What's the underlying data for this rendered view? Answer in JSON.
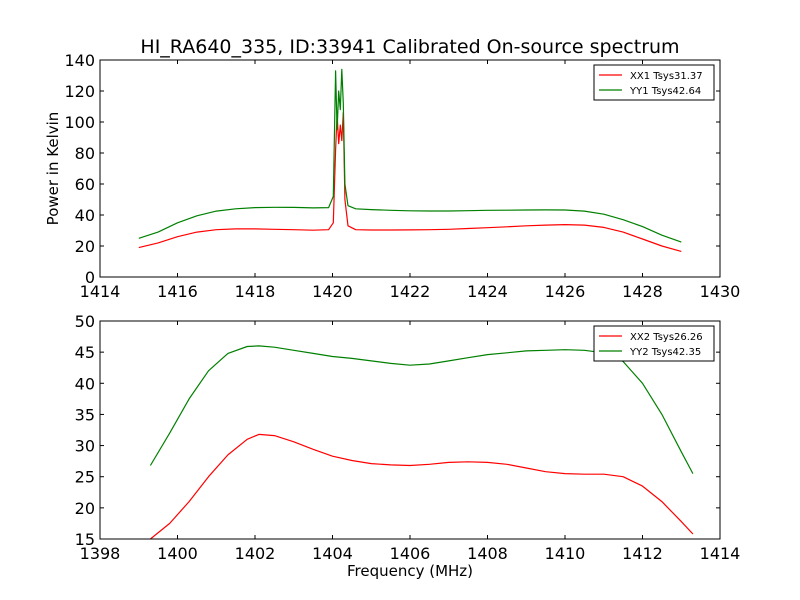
{
  "figure": {
    "title": "HI_RA640_335, ID:33941 Calibrated On-source spectrum",
    "background": "#ffffff"
  },
  "chart_data": [
    {
      "type": "line",
      "title": "HI_RA640_335, ID:33941 Calibrated On-source spectrum",
      "xlabel": "",
      "ylabel": "Power in Kelvin",
      "xlim": [
        1414,
        1430
      ],
      "ylim": [
        0,
        140
      ],
      "xticks": [
        "1414",
        "1416",
        "1418",
        "1420",
        "1422",
        "1424",
        "1426",
        "1428",
        "1430"
      ],
      "yticks": [
        "0",
        "20",
        "40",
        "60",
        "80",
        "100",
        "120",
        "140"
      ],
      "grid": false,
      "legend_position": "top-right",
      "series": [
        {
          "name": "XX1 Tsys31.37",
          "color": "#ff0000",
          "points": [
            [
              1415,
              19
            ],
            [
              1415.5,
              22
            ],
            [
              1416,
              26
            ],
            [
              1416.5,
              29
            ],
            [
              1417,
              30.5
            ],
            [
              1417.5,
              31
            ],
            [
              1418,
              31
            ],
            [
              1418.5,
              30.8
            ],
            [
              1419,
              30.5
            ],
            [
              1419.5,
              30.2
            ],
            [
              1419.9,
              30.5
            ],
            [
              1420.02,
              35
            ],
            [
              1420.08,
              82
            ],
            [
              1420.12,
              105
            ],
            [
              1420.16,
              86
            ],
            [
              1420.2,
              98
            ],
            [
              1420.24,
              88
            ],
            [
              1420.28,
              106
            ],
            [
              1420.32,
              50
            ],
            [
              1420.4,
              33
            ],
            [
              1420.6,
              30.5
            ],
            [
              1421,
              30.3
            ],
            [
              1421.5,
              30.3
            ],
            [
              1422,
              30.4
            ],
            [
              1422.5,
              30.5
            ],
            [
              1423,
              30.8
            ],
            [
              1423.5,
              31.3
            ],
            [
              1424,
              31.8
            ],
            [
              1424.5,
              32.4
            ],
            [
              1425,
              33
            ],
            [
              1425.5,
              33.5
            ],
            [
              1426,
              33.8
            ],
            [
              1426.5,
              33.5
            ],
            [
              1427,
              32
            ],
            [
              1427.5,
              29
            ],
            [
              1428,
              24.5
            ],
            [
              1428.5,
              20
            ],
            [
              1429,
              16.5
            ]
          ]
        },
        {
          "name": "YY1 Tsys42.64",
          "color": "#008000",
          "points": [
            [
              1415,
              25
            ],
            [
              1415.5,
              29
            ],
            [
              1416,
              35
            ],
            [
              1416.5,
              39.5
            ],
            [
              1417,
              42.5
            ],
            [
              1417.5,
              44
            ],
            [
              1418,
              44.8
            ],
            [
              1418.5,
              45
            ],
            [
              1419,
              44.9
            ],
            [
              1419.5,
              44.6
            ],
            [
              1419.9,
              44.8
            ],
            [
              1420.02,
              52
            ],
            [
              1420.08,
              133
            ],
            [
              1420.12,
              95
            ],
            [
              1420.16,
              120
            ],
            [
              1420.2,
              108
            ],
            [
              1420.24,
              134
            ],
            [
              1420.28,
              112
            ],
            [
              1420.32,
              60
            ],
            [
              1420.4,
              46
            ],
            [
              1420.6,
              44
            ],
            [
              1421,
              43.5
            ],
            [
              1421.5,
              43
            ],
            [
              1422,
              42.7
            ],
            [
              1422.5,
              42.6
            ],
            [
              1423,
              42.6
            ],
            [
              1423.5,
              42.8
            ],
            [
              1424,
              43
            ],
            [
              1424.5,
              43.1
            ],
            [
              1425,
              43.2
            ],
            [
              1425.5,
              43.3
            ],
            [
              1426,
              43.2
            ],
            [
              1426.5,
              42.5
            ],
            [
              1427,
              40.5
            ],
            [
              1427.5,
              37
            ],
            [
              1428,
              32.5
            ],
            [
              1428.5,
              27
            ],
            [
              1429,
              22.5
            ]
          ]
        }
      ]
    },
    {
      "type": "line",
      "title": "",
      "xlabel": "Frequency (MHz)",
      "ylabel": "",
      "xlim": [
        1398,
        1414
      ],
      "ylim": [
        15,
        50
      ],
      "xticks": [
        "1398",
        "1400",
        "1402",
        "1404",
        "1406",
        "1408",
        "1410",
        "1412",
        "1414"
      ],
      "yticks": [
        "15",
        "20",
        "25",
        "30",
        "35",
        "40",
        "45",
        "50"
      ],
      "grid": false,
      "legend_position": "top-right",
      "series": [
        {
          "name": "XX2 Tsys26.26",
          "color": "#ff0000",
          "points": [
            [
              1399.3,
              15
            ],
            [
              1399.8,
              17.5
            ],
            [
              1400.3,
              21
            ],
            [
              1400.8,
              25
            ],
            [
              1401.3,
              28.5
            ],
            [
              1401.8,
              31
            ],
            [
              1402.1,
              31.8
            ],
            [
              1402.5,
              31.6
            ],
            [
              1403,
              30.6
            ],
            [
              1403.5,
              29.4
            ],
            [
              1404,
              28.3
            ],
            [
              1404.5,
              27.6
            ],
            [
              1405,
              27.1
            ],
            [
              1405.5,
              26.9
            ],
            [
              1406,
              26.8
            ],
            [
              1406.5,
              27
            ],
            [
              1407,
              27.3
            ],
            [
              1407.5,
              27.4
            ],
            [
              1408,
              27.3
            ],
            [
              1408.5,
              27
            ],
            [
              1409,
              26.4
            ],
            [
              1409.5,
              25.8
            ],
            [
              1410,
              25.5
            ],
            [
              1410.5,
              25.4
            ],
            [
              1411,
              25.4
            ],
            [
              1411.5,
              25
            ],
            [
              1412,
              23.5
            ],
            [
              1412.5,
              21
            ],
            [
              1413,
              17.8
            ],
            [
              1413.3,
              15.8
            ]
          ]
        },
        {
          "name": "YY2 Tsys42.35",
          "color": "#008000",
          "points": [
            [
              1399.3,
              26.8
            ],
            [
              1399.8,
              32
            ],
            [
              1400.3,
              37.5
            ],
            [
              1400.8,
              42
            ],
            [
              1401.3,
              44.8
            ],
            [
              1401.8,
              45.9
            ],
            [
              1402.1,
              46
            ],
            [
              1402.5,
              45.8
            ],
            [
              1403,
              45.3
            ],
            [
              1403.5,
              44.8
            ],
            [
              1404,
              44.3
            ],
            [
              1404.5,
              44
            ],
            [
              1405,
              43.6
            ],
            [
              1405.5,
              43.2
            ],
            [
              1406,
              42.9
            ],
            [
              1406.5,
              43.1
            ],
            [
              1407,
              43.6
            ],
            [
              1407.5,
              44.1
            ],
            [
              1408,
              44.6
            ],
            [
              1408.5,
              44.9
            ],
            [
              1409,
              45.2
            ],
            [
              1409.5,
              45.3
            ],
            [
              1410,
              45.4
            ],
            [
              1410.5,
              45.3
            ],
            [
              1411,
              44.9
            ],
            [
              1411.5,
              43.5
            ],
            [
              1412,
              40
            ],
            [
              1412.5,
              35
            ],
            [
              1413,
              29
            ],
            [
              1413.3,
              25.5
            ]
          ]
        }
      ]
    }
  ]
}
